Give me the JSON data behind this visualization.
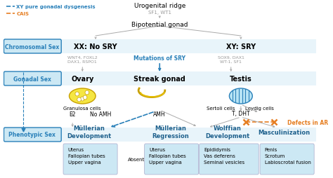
{
  "bg_color": "#ffffff",
  "light_blue": "#cce8f4",
  "box_blue": "#aed6f1",
  "text_blue": "#2980b9",
  "dark_blue": "#1f618d",
  "orange": "#e67e22",
  "gray": "#999999",
  "arrow_gray": "#aaaaaa",
  "legend1_color": "#2980b9",
  "legend2_color": "#e67e22",
  "title_top": "Urogenital ridge",
  "subtitle_top": "SF1, WT1",
  "bipotential": "Bipotential gonad",
  "chromosomal_sex": "Chromosomal Sex",
  "xx_label": "XX: No SRY",
  "xy_label": "XY: SRY",
  "wnt4_label": "WNT4, FOXL2\nDAX1, RSPO1",
  "sox9_label": "SOX9, DAX1\nWT-1, SF1",
  "mutations_label": "Mutations of SRY",
  "gonadal_sex": "Gonadal Sex",
  "ovary_label": "Ovary",
  "streak_label": "Streak gonad",
  "testis_label": "Testis",
  "granulosa_label": "Granulosa cells",
  "sertoli_label": "Sertoli cells",
  "leydig_label": "Leydig cells",
  "e2_label": "E2",
  "noamh_label": "No AMH",
  "amh_label": "AMH",
  "tdht_label": "T, DHT",
  "defects_label": "Defects in AR",
  "phenotypic_sex": "Phenotypic Sex",
  "mullerian_dev": "Müllerian\nDevelopment",
  "mullerian_reg": "Müllerian\nRegression",
  "wolffian_dev": "Wolffian\nDevelopment",
  "masculin": "Masculinization",
  "mul_dev_items": "Uterus\nFallopian tubes\nUpper vagina",
  "absent_label": "Absent",
  "mul_reg_items": "Uterus\nFallopian tubes\nUpper vagina",
  "wolff_items": "Epididymis\nVas deferens\nSeminal vesicles",
  "masc_items": "Penis\nScrotum\nLabioscrotal fusion",
  "legend_xy": "XY pure gonadal dysgenesis",
  "legend_cais": "CAIS",
  "figsize": [
    4.74,
    2.55
  ],
  "dpi": 100
}
